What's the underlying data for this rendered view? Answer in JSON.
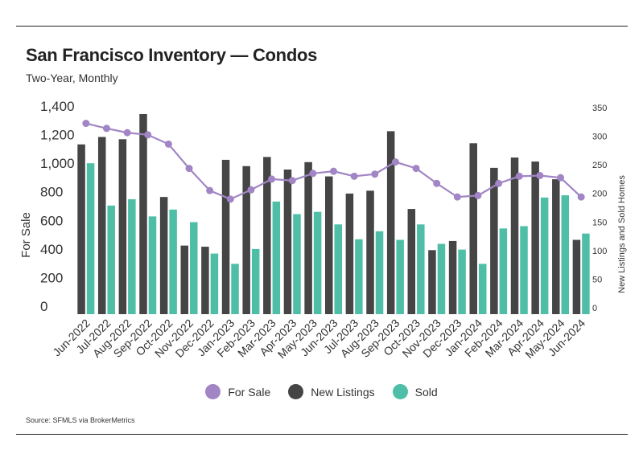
{
  "header": {
    "title": "San Francisco Inventory — Condos",
    "subtitle": "Two-Year, Monthly"
  },
  "footer": {
    "source": "Source:  SFMLS via BrokerMetrics"
  },
  "legend": {
    "items": [
      {
        "label": "For Sale",
        "color": "#a185c4"
      },
      {
        "label": "New Listings",
        "color": "#454545"
      },
      {
        "label": "Sold",
        "color": "#4ebfa6"
      }
    ]
  },
  "colors": {
    "for_sale": "#a185c4",
    "new_listings": "#454545",
    "sold": "#4ebfa6"
  },
  "chart_data": {
    "type": "bar",
    "categories": [
      "Jun-2022",
      "Jul-2022",
      "Aug-2022",
      "Sep-2022",
      "Oct-2022",
      "Nov-2022",
      "Dec-2022",
      "Jan-2023",
      "Feb-2023",
      "Mar-2023",
      "Apr-2023",
      "May-2023",
      "Jun-2023",
      "Jul-2023",
      "Aug-2023",
      "Sep-2023",
      "Oct-2023",
      "Nov-2023",
      "Dec-2023",
      "Jan-2024",
      "Feb-2024",
      "Mar-2024",
      "Apr-2024",
      "May-2024",
      "Jun-2024"
    ],
    "ylabel": "For Sale",
    "y2label": "New Listings and Sold Homes",
    "ylim": [
      0,
      1400
    ],
    "y2lim": [
      0,
      350
    ],
    "yticks": [
      "0",
      "200",
      "400",
      "600",
      "800",
      "1,000",
      "1,200",
      "1,400"
    ],
    "y2ticks": [
      "0",
      "50",
      "100",
      "150",
      "200",
      "250",
      "300",
      "350"
    ],
    "series": [
      {
        "name": "For Sale",
        "type": "line",
        "axis": "left",
        "values": [
          1335,
          1300,
          1270,
          1255,
          1190,
          1020,
          865,
          805,
          870,
          945,
          935,
          985,
          1000,
          965,
          980,
          1065,
          1020,
          915,
          820,
          830,
          915,
          965,
          970,
          955,
          820
        ]
      },
      {
        "name": "New Listings",
        "type": "bar",
        "axis": "right",
        "values": [
          297,
          310,
          306,
          350,
          205,
          120,
          118,
          270,
          259,
          275,
          253,
          266,
          241,
          211,
          216,
          320,
          184,
          112,
          128,
          299,
          256,
          274,
          267,
          236,
          130
        ]
      },
      {
        "name": "Sold",
        "type": "bar",
        "axis": "right",
        "values": [
          264,
          190,
          201,
          171,
          183,
          161,
          106,
          88,
          114,
          197,
          175,
          179,
          157,
          131,
          145,
          130,
          157,
          123,
          113,
          88,
          150,
          154,
          204,
          208,
          141
        ]
      }
    ]
  }
}
